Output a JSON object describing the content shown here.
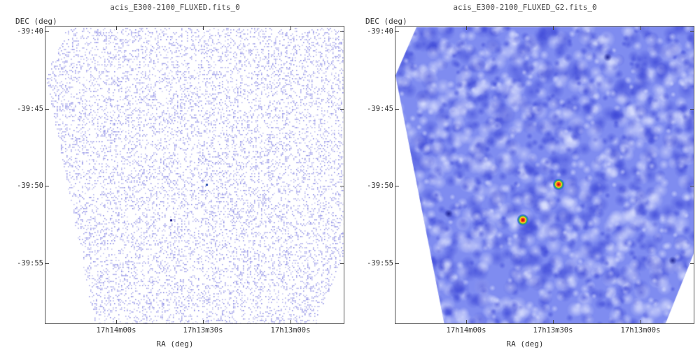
{
  "panels": [
    {
      "title": "acis_E300-2100_FLUXED.fits_0",
      "y_axis_label": "DEC (deg)",
      "x_axis_label": "RA (deg)",
      "y_ticks": [
        "-39:40",
        "-39:45",
        "-39:50",
        "-39:55"
      ],
      "x_ticks": [
        "17h14m00s",
        "17h13m30s",
        "17h13m00s"
      ],
      "style": "sparse"
    },
    {
      "title": "acis_E300-2100_FLUXED_G2.fits_0",
      "y_axis_label": "DEC (deg)",
      "x_axis_label": "RA (deg)",
      "y_ticks": [
        "-39:40",
        "-39:45",
        "-39:50",
        "-39:55"
      ],
      "x_ticks": [
        "17h14m00s",
        "17h13m30s",
        "17h13m00s"
      ],
      "style": "smoothed"
    }
  ],
  "colors": {
    "sparse_pixel": "#6f6fe0",
    "smooth_base": "#5a66e6",
    "source_hot": "#ff3b1f",
    "source_warm": "#ffd21f",
    "source_cool": "#2fb34a",
    "frame": "#555555"
  }
}
